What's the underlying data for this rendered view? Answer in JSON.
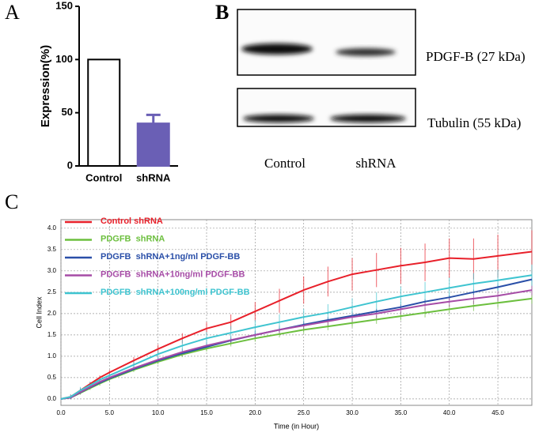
{
  "panel_labels": [
    "A",
    "B",
    "C"
  ],
  "blot": {
    "bands": [
      "PDGF-B (27 kDa)",
      "Tubulin (55 kDa)"
    ],
    "lanes": [
      "Control",
      "shRNA"
    ]
  },
  "chart_data": [
    {
      "type": "bar",
      "y_label": "Expression(%)",
      "categories": [
        "Control",
        "shRNA"
      ],
      "values": [
        100,
        40
      ],
      "errors": [
        0,
        8
      ],
      "colors": [
        "#ffffff",
        "#6a5fb5"
      ],
      "ylim": [
        0,
        150
      ],
      "yticks": [
        0,
        50,
        100,
        150
      ]
    },
    {
      "type": "line",
      "x_label": "Time (in Hour)",
      "y_label": "Cell Index",
      "grid": true,
      "legend": "upper left",
      "x": [
        0,
        1,
        2,
        3,
        4,
        5,
        7.5,
        10,
        12.5,
        15,
        17.5,
        20,
        22.5,
        25,
        27.5,
        30,
        32.5,
        35,
        37.5,
        40,
        42.5,
        45,
        48.5
      ],
      "xlim": [
        0,
        48.5
      ],
      "ylim": [
        -0.15,
        4.2
      ],
      "xticks": [
        {
          "value": 0,
          "label": "0.0"
        },
        {
          "value": 5,
          "label": "5.0"
        },
        {
          "value": 10,
          "label": "10.0"
        },
        {
          "value": 15,
          "label": "15.0"
        },
        {
          "value": 20,
          "label": "20.0"
        },
        {
          "value": 25,
          "label": "25.0"
        },
        {
          "value": 30,
          "label": "30.0"
        },
        {
          "value": 35,
          "label": "35.0"
        },
        {
          "value": 40,
          "label": "40.0"
        },
        {
          "value": 45,
          "label": "45.0"
        }
      ],
      "yticks": [
        {
          "value": 0,
          "label": "0.0"
        },
        {
          "value": 0.5,
          "label": "0.5"
        },
        {
          "value": 1,
          "label": "1.0"
        },
        {
          "value": 1.5,
          "label": "1.5"
        },
        {
          "value": 2,
          "label": "2.0"
        },
        {
          "value": 2.5,
          "label": "2.5"
        },
        {
          "value": 3,
          "label": "3.0"
        },
        {
          "value": 3.5,
          "label": "3.5"
        },
        {
          "value": 4,
          "label": "4.0"
        }
      ],
      "series": [
        {
          "name": "Control shRNA",
          "color": "#e8202a",
          "values": [
            0,
            0.05,
            0.2,
            0.35,
            0.5,
            0.62,
            0.9,
            1.17,
            1.42,
            1.65,
            1.8,
            2.05,
            2.3,
            2.55,
            2.75,
            2.92,
            3.02,
            3.12,
            3.2,
            3.3,
            3.28,
            3.35,
            3.45
          ],
          "errors": [
            0.02,
            0.05,
            0.05,
            0.05,
            0.05,
            0.06,
            0.08,
            0.1,
            0.12,
            0.15,
            0.18,
            0.22,
            0.28,
            0.32,
            0.35,
            0.38,
            0.4,
            0.42,
            0.44,
            0.46,
            0.48,
            0.5,
            0.5
          ]
        },
        {
          "name": "PDGFB  shRNA",
          "color": "#6cbf3e",
          "values": [
            0,
            0.03,
            0.14,
            0.25,
            0.36,
            0.46,
            0.68,
            0.87,
            1.04,
            1.18,
            1.3,
            1.42,
            1.52,
            1.62,
            1.7,
            1.78,
            1.86,
            1.94,
            2.02,
            2.1,
            2.18,
            2.25,
            2.35
          ],
          "errors": [
            0.02,
            0.04,
            0.04,
            0.04,
            0.05,
            0.05,
            0.05,
            0.06,
            0.06,
            0.07,
            0.07,
            0.08,
            0.08,
            0.09,
            0.09,
            0.1,
            0.1,
            0.1,
            0.11,
            0.11,
            0.12,
            0.12,
            0.12
          ]
        },
        {
          "name": "PDGFB  shRNA+1ng/ml PDGF-BB",
          "color": "#2a4fa8",
          "values": [
            0,
            0.03,
            0.15,
            0.27,
            0.38,
            0.48,
            0.7,
            0.9,
            1.07,
            1.22,
            1.37,
            1.5,
            1.62,
            1.74,
            1.85,
            1.95,
            2.05,
            2.15,
            2.28,
            2.38,
            2.5,
            2.62,
            2.8
          ],
          "errors": [
            0.02,
            0.03,
            0.03,
            0.03,
            0.03,
            0.03,
            0.04,
            0.04,
            0.04,
            0.04,
            0.05,
            0.05,
            0.05,
            0.05,
            0.05,
            0.05,
            0.06,
            0.06,
            0.06,
            0.06,
            0.06,
            0.06,
            0.06
          ]
        },
        {
          "name": "PDGFB  shRNA+10ng/ml PDGF-BB",
          "color": "#a64ca6",
          "values": [
            0,
            0.03,
            0.16,
            0.28,
            0.4,
            0.5,
            0.72,
            0.92,
            1.1,
            1.25,
            1.38,
            1.5,
            1.62,
            1.72,
            1.82,
            1.92,
            2.0,
            2.1,
            2.2,
            2.28,
            2.35,
            2.42,
            2.55
          ],
          "errors": [
            0.02,
            0.04,
            0.05,
            0.05,
            0.05,
            0.06,
            0.06,
            0.07,
            0.08,
            0.08,
            0.09,
            0.09,
            0.1,
            0.1,
            0.1,
            0.11,
            0.11,
            0.12,
            0.12,
            0.12,
            0.13,
            0.13,
            0.13
          ]
        },
        {
          "name": "PDGFB  shRNA+100ng/ml PDGF-BB",
          "color": "#3fc4d0",
          "values": [
            0,
            0.05,
            0.2,
            0.32,
            0.45,
            0.55,
            0.8,
            1.05,
            1.25,
            1.42,
            1.55,
            1.68,
            1.8,
            1.92,
            2.02,
            2.15,
            2.28,
            2.4,
            2.5,
            2.6,
            2.7,
            2.78,
            2.9
          ],
          "errors": [
            0.02,
            0.06,
            0.08,
            0.08,
            0.08,
            0.08,
            0.1,
            0.12,
            0.14,
            0.15,
            0.16,
            0.17,
            0.18,
            0.19,
            0.2,
            0.21,
            0.22,
            0.23,
            0.24,
            0.24,
            0.25,
            0.25,
            0.25
          ]
        }
      ]
    }
  ]
}
